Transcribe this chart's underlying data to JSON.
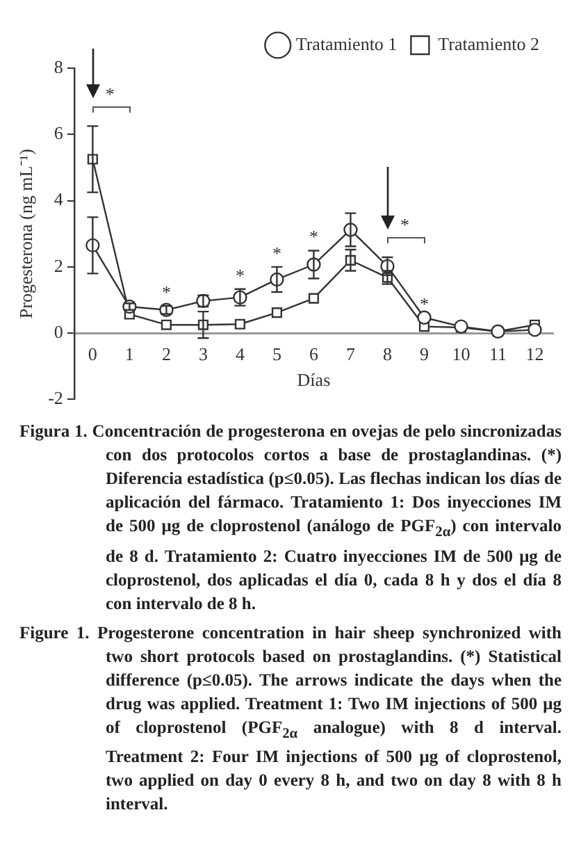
{
  "chart_data": {
    "type": "line",
    "xlabel": "Días",
    "ylabel": "Progesterona (ng mL⁻¹)",
    "x": [
      0,
      1,
      2,
      3,
      4,
      5,
      6,
      7,
      8,
      9,
      10,
      11,
      12
    ],
    "xlim": [
      -0.5,
      12.5
    ],
    "xticks": [
      0,
      1,
      2,
      3,
      4,
      5,
      6,
      7,
      8,
      9,
      10,
      11,
      12
    ],
    "ylim": [
      -2,
      8
    ],
    "yticks": [
      -2,
      0,
      2,
      4,
      6,
      8
    ],
    "grid": false,
    "legend": "top right",
    "line_style": "solid",
    "series": [
      {
        "name": "Tratamiento 1",
        "color": "#333333",
        "marker": "circle",
        "values": [
          2.65,
          0.8,
          0.7,
          0.97,
          1.08,
          1.62,
          2.07,
          3.12,
          2.02,
          0.47,
          0.2,
          0.05,
          0.1
        ],
        "errors": [
          0.85,
          0.1,
          0.12,
          0.17,
          0.25,
          0.38,
          0.42,
          0.5,
          0.27,
          null,
          null,
          null,
          null
        ]
      },
      {
        "name": "Tratamiento 2",
        "color": "#333333",
        "marker": "square",
        "values": [
          5.25,
          0.57,
          0.25,
          0.25,
          0.27,
          0.62,
          1.05,
          2.2,
          1.68,
          0.2,
          0.17,
          0.05,
          0.25
        ],
        "errors": [
          1.0,
          null,
          null,
          0.4,
          null,
          null,
          null,
          0.32,
          0.2,
          null,
          null,
          null,
          null
        ]
      }
    ],
    "annotations": [
      "*",
      "*",
      {
        "text": "*",
        "x": 2,
        "y": 0.7
      },
      {
        "text": "*",
        "x": 4,
        "y": 1.08
      },
      {
        "text": "*",
        "x": 5,
        "y": 1.62
      },
      {
        "text": "*",
        "x": 6,
        "y": 2.07
      },
      {
        "text": "*",
        "x": 9,
        "y": 0.47
      },
      "Figura 1. Concentración de progesterona en ovejas de pelo sincronizadas con dos protocolos cortos a base de prostaglandinas. (*) Diferencia estadística (p≤0.05). Las flechas indican los días de aplicación del fármaco. Tratamiento 1: Dos inyecciones IM de 500 μg de cloprostenol (análogo de PGF$_{2α}$) con intervalo de 8 d. Tratamiento 2: Cuatro inyecciones IM de 500 μg de cloprostenol, dos aplicadas el día 0, cada 8 h y dos el día 8 con intervalo de 8 h.",
      "Figure 1. Progesterone concentration in hair sheep synchronized with two short protocols based on prostaglandins. (*) Statistical difference (p≤0.05). The arrows indicate the days when the drug was applied. Treatment 1: Two IM injections of 500 μg of cloprostenol (PGF$_{2α}$ analogue) with 8 d interval. Treatment 2: Four IM injections of 500 μg of cloprostenol, two applied on day 0 every 8 h, and two on day 8 with 8 h interval."
    ]
  }
}
